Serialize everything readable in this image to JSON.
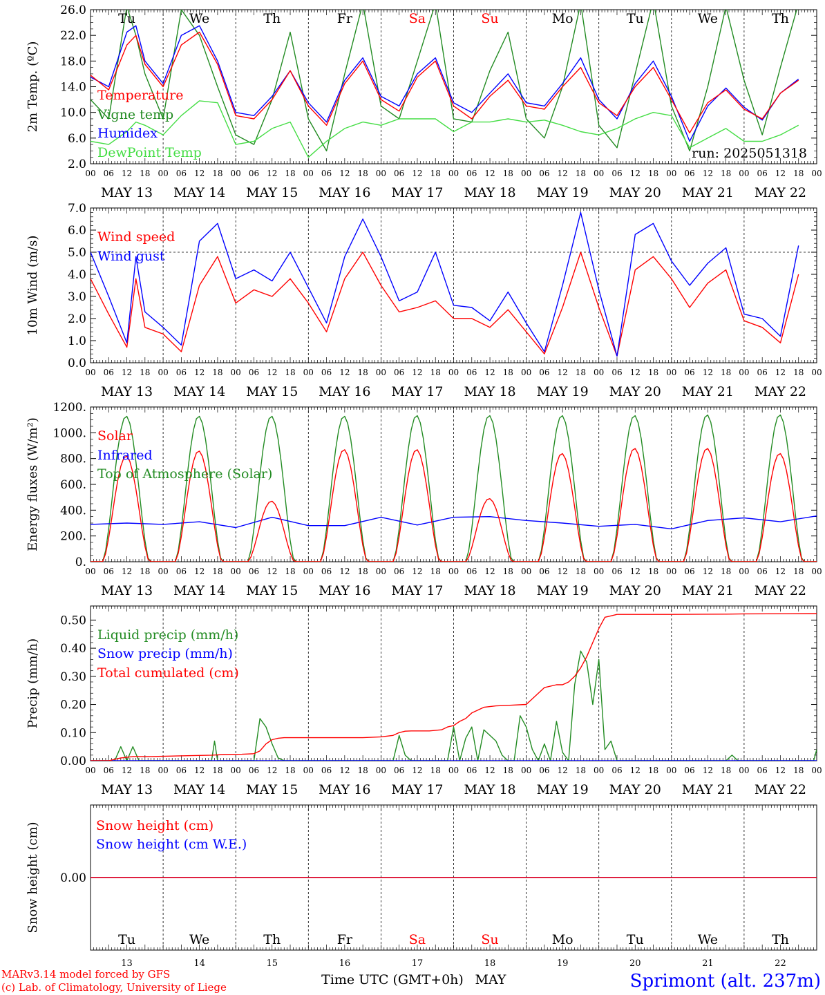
{
  "meteogram": {
    "run": "run: 2025051318",
    "xlabel": "Time UTC (GMT+0h)",
    "month": "MAY",
    "date_labels": [
      "MAY 13",
      "MAY 14",
      "MAY 15",
      "MAY 16",
      "MAY 17",
      "MAY 18",
      "MAY 19",
      "MAY 20",
      "MAY 21",
      "MAY 22"
    ],
    "hour_labels": [
      "00",
      "06",
      "12",
      "18"
    ],
    "day_names": [
      "Tu",
      "We",
      "Th",
      "Fr",
      "Sa",
      "Su",
      "Mo",
      "Tu",
      "We",
      "Th"
    ],
    "weekend_days": [
      4,
      5
    ],
    "day_numbers": [
      "13",
      "14",
      "15",
      "16",
      "17",
      "18",
      "19",
      "20",
      "21",
      "22"
    ],
    "credit_line1": "MARv3.14 model forced by GFS",
    "credit_line2": "(c) Lab. of Climatology, University of Liege",
    "station": "Sprimont (alt. 237m)"
  },
  "colors": {
    "red": "#ff0000",
    "blue": "#0000ff",
    "green": "#228b22",
    "light_green": "#44dd44",
    "axis": "#000000",
    "weekend": "#ff0000"
  },
  "chart_data": [
    {
      "type": "line",
      "ylabel": "2m Temp. (ºC)",
      "ylim": [
        2.0,
        26.0
      ],
      "yticks": [
        "2.0",
        "6.0",
        "10.0",
        "14.0",
        "18.0",
        "22.0",
        "26.0"
      ],
      "x_unit": "hours since MAY 13 00 UTC",
      "series": [
        {
          "name": "Temperature",
          "color": "red",
          "x": [
            0,
            6,
            12,
            15,
            18,
            24,
            30,
            36,
            42,
            48,
            54,
            60,
            66,
            72,
            78,
            84,
            90,
            96,
            102,
            108,
            114,
            120,
            126,
            132,
            138,
            144,
            150,
            156,
            162,
            168,
            174,
            180,
            186,
            192,
            198,
            204,
            210,
            216,
            222,
            228,
            234
          ],
          "y": [
            15.8,
            13.5,
            20.5,
            22.0,
            17.5,
            14.0,
            20.5,
            22.5,
            17.5,
            9.5,
            9.0,
            12.0,
            16.5,
            11.0,
            8.0,
            14.5,
            18.0,
            12.0,
            10.2,
            15.5,
            18.0,
            11.0,
            9.0,
            12.5,
            15.0,
            11.0,
            10.5,
            14.0,
            17.0,
            11.5,
            9.5,
            14.0,
            17.0,
            12.0,
            6.8,
            11.5,
            13.5,
            10.5,
            9.0,
            13.0,
            15.0
          ]
        },
        {
          "name": "Vigne temp",
          "color": "green",
          "x": [
            0,
            6,
            12,
            15,
            18,
            24,
            30,
            36,
            42,
            48,
            54,
            60,
            66,
            72,
            78,
            84,
            90,
            96,
            102,
            108,
            114,
            120,
            126,
            132,
            138,
            144,
            150,
            156,
            162,
            168,
            174,
            180,
            186,
            192,
            198,
            204,
            210,
            216,
            222,
            228,
            234
          ],
          "y": [
            12.0,
            9.0,
            26.5,
            22.0,
            16.0,
            9.0,
            26.0,
            22.0,
            14.0,
            6.5,
            5.0,
            12.0,
            22.5,
            9.0,
            4.0,
            16.0,
            27.0,
            11.0,
            9.0,
            18.0,
            27.0,
            9.0,
            8.5,
            16.5,
            22.5,
            9.0,
            6.0,
            14.0,
            27.0,
            8.0,
            4.5,
            16.0,
            27.5,
            11.0,
            4.0,
            14.0,
            26.5,
            15.0,
            6.5,
            17.0,
            27.0
          ]
        },
        {
          "name": "Humidex",
          "color": "blue",
          "x": [
            0,
            6,
            12,
            15,
            18,
            24,
            30,
            36,
            42,
            48,
            54,
            60,
            66,
            72,
            78,
            84,
            90,
            96,
            102,
            108,
            114,
            120,
            126,
            132,
            138,
            144,
            150,
            156,
            162,
            168,
            174,
            180,
            186,
            192,
            198,
            204,
            210,
            216,
            222,
            228,
            234
          ],
          "y": [
            15.5,
            14.0,
            22.5,
            23.5,
            18.0,
            14.5,
            22.0,
            23.5,
            18.0,
            10.0,
            9.5,
            12.5,
            16.5,
            11.5,
            8.5,
            15.0,
            18.5,
            12.5,
            11.0,
            16.0,
            18.5,
            11.5,
            10.0,
            13.0,
            16.0,
            11.5,
            11.0,
            14.5,
            18.5,
            12.0,
            9.0,
            14.5,
            18.0,
            12.5,
            5.5,
            11.0,
            13.8,
            10.8,
            8.8,
            13.0,
            15.2
          ]
        },
        {
          "name": "DewPoint Temp",
          "color": "light_green",
          "x": [
            0,
            6,
            12,
            15,
            18,
            24,
            30,
            36,
            42,
            48,
            54,
            60,
            66,
            72,
            78,
            84,
            90,
            96,
            102,
            108,
            114,
            120,
            126,
            132,
            138,
            144,
            150,
            156,
            162,
            168,
            174,
            180,
            186,
            192,
            198,
            204,
            210,
            216,
            222,
            228,
            234
          ],
          "y": [
            5.5,
            5.0,
            7.0,
            8.5,
            8.0,
            6.5,
            9.5,
            11.8,
            11.5,
            5.0,
            5.5,
            7.5,
            8.5,
            3.0,
            5.5,
            7.5,
            8.5,
            8.0,
            9.0,
            9.0,
            9.0,
            7.0,
            8.5,
            8.5,
            9.0,
            8.5,
            8.8,
            8.0,
            7.0,
            6.5,
            7.5,
            9.0,
            10.0,
            9.5,
            4.5,
            6.0,
            7.5,
            5.5,
            5.5,
            6.5,
            8.0
          ]
        }
      ]
    },
    {
      "type": "line",
      "ylabel": "10m Wind (m/s)",
      "ylim": [
        0.0,
        7.0
      ],
      "yticks": [
        "0.0",
        "1.0",
        "2.0",
        "3.0",
        "4.0",
        "5.0",
        "6.0",
        "7.0"
      ],
      "ref_line": 5.0,
      "x_unit": "hours since MAY 13 00 UTC",
      "series": [
        {
          "name": "Wind speed",
          "color": "red",
          "x": [
            0,
            6,
            12,
            15,
            18,
            24,
            30,
            36,
            42,
            48,
            54,
            60,
            66,
            72,
            78,
            84,
            90,
            96,
            102,
            108,
            114,
            120,
            126,
            132,
            138,
            144,
            150,
            156,
            162,
            168,
            174,
            180,
            186,
            192,
            198,
            204,
            210,
            216,
            222,
            228,
            234
          ],
          "y": [
            3.8,
            2.2,
            0.7,
            3.8,
            1.6,
            1.3,
            0.5,
            3.5,
            4.8,
            2.7,
            3.3,
            3.0,
            3.8,
            2.7,
            1.4,
            3.8,
            5.0,
            3.5,
            2.3,
            2.5,
            2.8,
            2.0,
            2.0,
            1.6,
            2.4,
            1.4,
            0.4,
            2.5,
            5.0,
            2.5,
            0.3,
            4.2,
            4.8,
            3.8,
            2.5,
            3.6,
            4.2,
            1.9,
            1.6,
            0.9,
            4.0
          ]
        },
        {
          "name": "Wind gust",
          "color": "blue",
          "x": [
            0,
            6,
            12,
            15,
            18,
            24,
            30,
            36,
            42,
            48,
            54,
            60,
            66,
            72,
            78,
            84,
            90,
            96,
            102,
            108,
            114,
            120,
            126,
            132,
            138,
            144,
            150,
            156,
            162,
            168,
            174,
            180,
            186,
            192,
            198,
            204,
            210,
            216,
            222,
            228,
            234
          ],
          "y": [
            5.0,
            3.0,
            0.9,
            4.8,
            2.3,
            1.6,
            0.8,
            5.5,
            6.3,
            3.8,
            4.2,
            3.7,
            5.0,
            3.4,
            1.8,
            4.8,
            6.5,
            4.8,
            2.8,
            3.2,
            5.0,
            2.6,
            2.5,
            1.9,
            3.2,
            1.8,
            0.5,
            3.5,
            6.8,
            3.3,
            0.3,
            5.8,
            6.3,
            4.6,
            3.5,
            4.5,
            5.2,
            2.2,
            2.0,
            1.2,
            5.3
          ]
        }
      ]
    },
    {
      "type": "line",
      "ylabel": "Energy fluxes (W/m²)",
      "ylim": [
        0,
        1200
      ],
      "yticks": [
        "0.",
        "200.",
        "400.",
        "600.",
        "800.",
        "1000.",
        "1200."
      ],
      "x_unit": "hours since MAY 13 00 UTC",
      "daylight": {
        "sunrise_hour": 4,
        "sunset_hour": 19.5
      },
      "series": [
        {
          "name": "Solar",
          "color": "red",
          "daily_peak": [
            820,
            860,
            470,
            870,
            870,
            490,
            840,
            880,
            880,
            840
          ]
        },
        {
          "name": "Infrared",
          "color": "blue",
          "x": [
            0,
            12,
            24,
            36,
            48,
            60,
            72,
            84,
            96,
            108,
            120,
            132,
            144,
            156,
            168,
            180,
            192,
            204,
            216,
            228,
            240
          ],
          "y": [
            290,
            300,
            290,
            310,
            265,
            345,
            280,
            280,
            345,
            285,
            345,
            350,
            320,
            300,
            275,
            290,
            255,
            320,
            340,
            310,
            355
          ]
        },
        {
          "name": "Top of Atmosphere (Solar)",
          "color": "green",
          "daily_peak": [
            1130,
            1130,
            1130,
            1130,
            1135,
            1135,
            1135,
            1135,
            1140,
            1140
          ]
        }
      ]
    },
    {
      "type": "line",
      "ylabel": "Precip (mm/h)",
      "ylim": [
        0.0,
        0.55
      ],
      "yticks": [
        "0.00",
        "0.10",
        "0.20",
        "0.30",
        "0.40",
        "0.50"
      ],
      "x_unit": "hours since MAY 13 00 UTC",
      "series": [
        {
          "name": "Liquid precip (mm/h)",
          "color": "green",
          "x": [
            0,
            8,
            10,
            12,
            14,
            16,
            40,
            41,
            42,
            54,
            56,
            58,
            60,
            62,
            64,
            66,
            100,
            102,
            104,
            106,
            118,
            120,
            122,
            124,
            126,
            128,
            130,
            132,
            134,
            136,
            138,
            140,
            142,
            144,
            146,
            148,
            150,
            152,
            154,
            156,
            158,
            160,
            162,
            164,
            166,
            168,
            170,
            172,
            174,
            210,
            212,
            214,
            239,
            240
          ],
          "y": [
            0,
            0,
            0.05,
            0,
            0.05,
            0,
            0,
            0.07,
            0,
            0,
            0.15,
            0.12,
            0.06,
            0.01,
            0,
            0,
            0,
            0.09,
            0.02,
            0,
            0,
            0.12,
            0,
            0.08,
            0.12,
            0,
            0.11,
            0.09,
            0.07,
            0.02,
            0,
            0,
            0.16,
            0.12,
            0.04,
            0,
            0.06,
            0,
            0.14,
            0.03,
            0,
            0.27,
            0.39,
            0.35,
            0.2,
            0.36,
            0.04,
            0.07,
            0,
            0,
            0.02,
            0,
            0,
            0.04
          ]
        },
        {
          "name": "Snow precip (mm/h)",
          "color": "blue",
          "x": [
            0,
            240
          ],
          "y": [
            0,
            0
          ]
        },
        {
          "name": "Total cumulated (cm)",
          "color": "red",
          "x": [
            0,
            6,
            10,
            14,
            20,
            40,
            44,
            50,
            54,
            56,
            58,
            60,
            62,
            64,
            66,
            72,
            90,
            96,
            100,
            102,
            104,
            106,
            112,
            116,
            118,
            120,
            122,
            124,
            126,
            130,
            134,
            138,
            144,
            146,
            150,
            154,
            156,
            158,
            160,
            162,
            164,
            166,
            168,
            170,
            172,
            174,
            180,
            192,
            210,
            216,
            240
          ],
          "y": [
            0,
            0,
            0.01,
            0.015,
            0.015,
            0.02,
            0.022,
            0.023,
            0.025,
            0.035,
            0.06,
            0.075,
            0.08,
            0.082,
            0.082,
            0.082,
            0.082,
            0.085,
            0.09,
            0.1,
            0.105,
            0.106,
            0.106,
            0.11,
            0.12,
            0.125,
            0.14,
            0.15,
            0.17,
            0.19,
            0.195,
            0.197,
            0.2,
            0.22,
            0.26,
            0.27,
            0.27,
            0.28,
            0.3,
            0.33,
            0.37,
            0.42,
            0.47,
            0.51,
            0.515,
            0.52,
            0.52,
            0.52,
            0.521,
            0.522,
            0.523
          ]
        }
      ]
    },
    {
      "type": "line",
      "ylabel": "Snow height (cm)",
      "yticks": [
        "0.00"
      ],
      "x_unit": "hours since MAY 13 00 UTC",
      "series": [
        {
          "name": "Snow height (cm)",
          "color": "red",
          "x": [
            0,
            240
          ],
          "y": [
            0,
            0
          ]
        },
        {
          "name": "Snow height (cm W.E.)",
          "color": "blue",
          "x": [
            0,
            240
          ],
          "y": [
            0,
            0
          ]
        }
      ]
    }
  ]
}
